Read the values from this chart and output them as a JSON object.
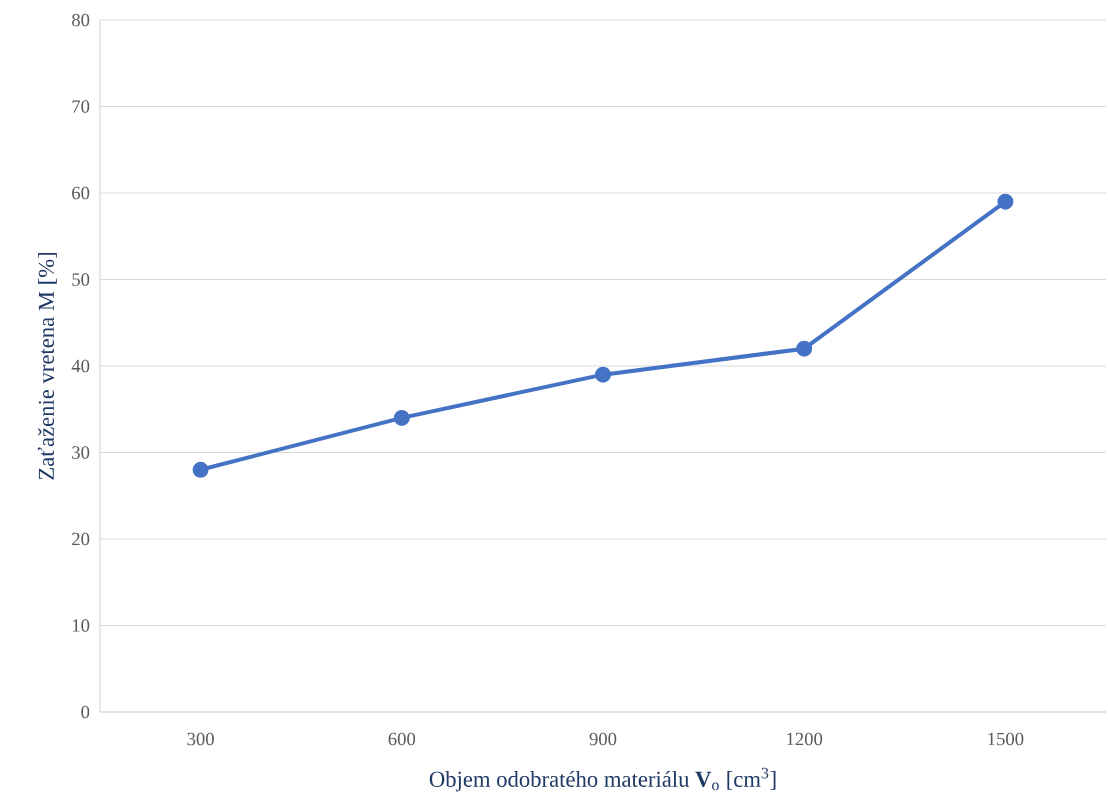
{
  "chart_data": {
    "type": "line",
    "xlabel": "Objem odobratého materiálu **V**$_{o}$ [cm$^{3}$]",
    "ylabel": "Zaťaženie vretena M [%]",
    "categories": [
      "300",
      "600",
      "900",
      "1200",
      "1500"
    ],
    "series": [
      {
        "color": "#4472c4",
        "values": [
          28,
          34,
          39,
          42,
          59
        ]
      }
    ],
    "ylim": [
      0,
      80
    ],
    "yticks": [
      0,
      10,
      20,
      30,
      40,
      50,
      60,
      70,
      80
    ],
    "grid": "y",
    "marker": "circle",
    "line_style": "solid",
    "legend": false
  }
}
